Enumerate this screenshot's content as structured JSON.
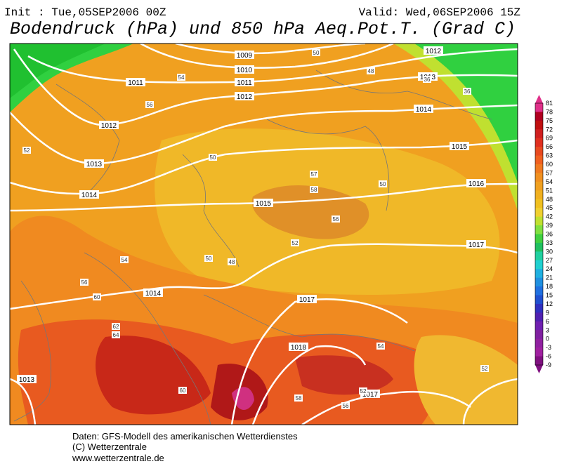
{
  "header": {
    "init": "Init : Tue,05SEP2006 00Z",
    "valid": "Valid: Wed,06SEP2006 15Z",
    "title": "Bodendruck (hPa) und 850 hPa Aeq.Pot.T. (Grad C)"
  },
  "isobars": [
    1009,
    1010,
    1011,
    1011,
    1012,
    1012,
    1013,
    1014,
    1015,
    1016,
    1017,
    1012,
    1013,
    1014,
    1015,
    1014,
    1017,
    1018,
    1017,
    1013
  ],
  "theta_labels": [
    50,
    48,
    54,
    56,
    52,
    50,
    57,
    58,
    56,
    52,
    54,
    50,
    48,
    56,
    60,
    62,
    64,
    60,
    58,
    52,
    56,
    54,
    50,
    36,
    36,
    52
  ],
  "legend": {
    "labels": [
      81,
      78,
      75,
      72,
      69,
      66,
      63,
      60,
      57,
      54,
      51,
      48,
      45,
      42,
      39,
      36,
      33,
      30,
      27,
      24,
      21,
      18,
      15,
      12,
      9,
      6,
      3,
      0,
      -3,
      -6,
      -9
    ],
    "colors": [
      "#e0308a",
      "#b00020",
      "#c01010",
      "#d02020",
      "#e03020",
      "#e84a20",
      "#f06020",
      "#f07a20",
      "#f09020",
      "#f0a020",
      "#f0b020",
      "#f0c020",
      "#f0d030",
      "#c0e030",
      "#80e040",
      "#40d040",
      "#20c060",
      "#20d0a0",
      "#20d0d0",
      "#20b0e0",
      "#2090e0",
      "#2070e0",
      "#2050d0",
      "#3030c0",
      "#5020b0",
      "#7020b0",
      "#8020a0",
      "#9020a0",
      "#a020a0",
      "#801080"
    ]
  },
  "footer": [
    "Daten: GFS-Modell des amerikanischen Wetterdienstes",
    "(C) Wetterzentrale",
    "www.wetterzentrale.de"
  ]
}
